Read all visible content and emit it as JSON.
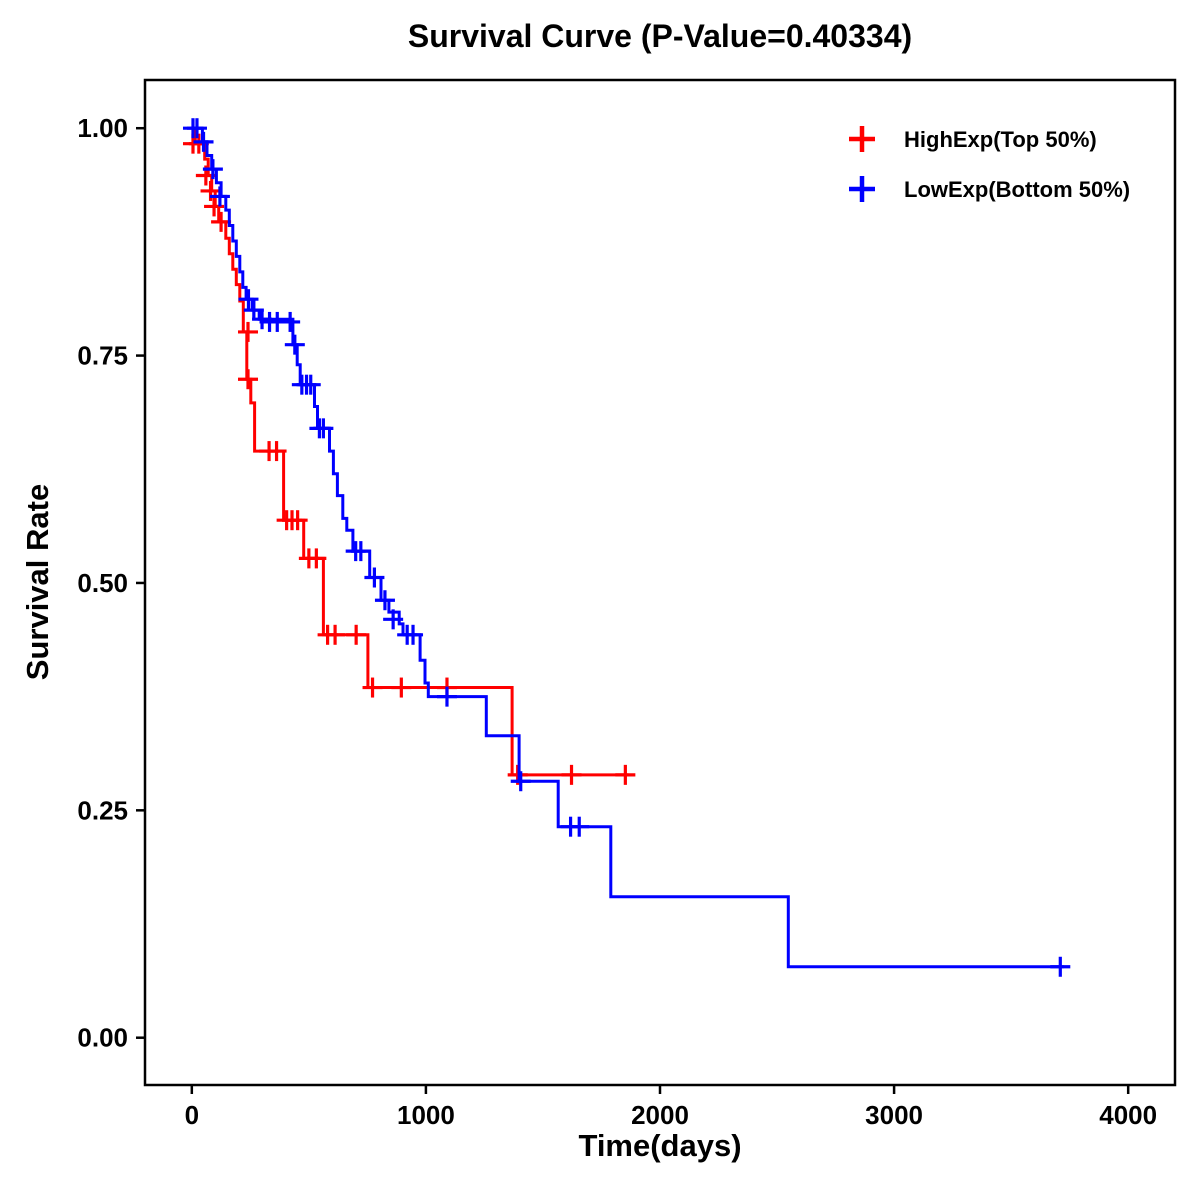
{
  "chart_data": {
    "type": "line",
    "variant": "kaplan-meier-step",
    "title": "Survival Curve (P-Value=0.40334)",
    "xlabel": "Time(days)",
    "ylabel": "Survival Rate",
    "xlim": [
      -200,
      4200
    ],
    "ylim": [
      -0.052,
      1.053
    ],
    "grid": false,
    "legend_position": "top-right",
    "axis_color": "#000000",
    "xticks": [
      {
        "v": 0,
        "label": "0"
      },
      {
        "v": 1000,
        "label": "1000"
      },
      {
        "v": 2000,
        "label": "2000"
      },
      {
        "v": 3000,
        "label": "3000"
      },
      {
        "v": 4000,
        "label": "4000"
      }
    ],
    "yticks": [
      {
        "v": 0.0,
        "label": "0.00"
      },
      {
        "v": 0.25,
        "label": "0.25"
      },
      {
        "v": 0.5,
        "label": "0.50"
      },
      {
        "v": 0.75,
        "label": "0.75"
      },
      {
        "v": 1.0,
        "label": "1.00"
      }
    ],
    "series": [
      {
        "name": "HighExp(Top 50%)",
        "color": "#FF0000",
        "points": [
          [
            0,
            1.0
          ],
          [
            15,
            0.983
          ],
          [
            55,
            0.966
          ],
          [
            70,
            0.948
          ],
          [
            85,
            0.931
          ],
          [
            100,
            0.914
          ],
          [
            115,
            0.897
          ],
          [
            145,
            0.879
          ],
          [
            160,
            0.862
          ],
          [
            175,
            0.845
          ],
          [
            190,
            0.828
          ],
          [
            205,
            0.81
          ],
          [
            220,
            0.776
          ],
          [
            235,
            0.724
          ],
          [
            252,
            0.698
          ],
          [
            268,
            0.645
          ],
          [
            392,
            0.569
          ],
          [
            478,
            0.527
          ],
          [
            562,
            0.443
          ],
          [
            752,
            0.385
          ],
          [
            1368,
            0.289
          ],
          [
            1865,
            0.289
          ]
        ],
        "censors": [
          [
            5,
            0.983
          ],
          [
            30,
            0.983
          ],
          [
            60,
            0.948
          ],
          [
            80,
            0.931
          ],
          [
            95,
            0.914
          ],
          [
            125,
            0.897
          ],
          [
            240,
            0.776
          ],
          [
            240,
            0.724
          ],
          [
            330,
            0.645
          ],
          [
            362,
            0.645
          ],
          [
            405,
            0.569
          ],
          [
            428,
            0.569
          ],
          [
            452,
            0.569
          ],
          [
            500,
            0.527
          ],
          [
            532,
            0.527
          ],
          [
            580,
            0.443
          ],
          [
            612,
            0.443
          ],
          [
            702,
            0.443
          ],
          [
            772,
            0.385
          ],
          [
            895,
            0.385
          ],
          [
            1090,
            0.385
          ],
          [
            1392,
            0.289
          ],
          [
            1622,
            0.289
          ],
          [
            1852,
            0.289
          ]
        ]
      },
      {
        "name": "LowExp(Bottom 50%)",
        "color": "#0000FF",
        "points": [
          [
            0,
            1.0
          ],
          [
            45,
            0.985
          ],
          [
            65,
            0.97
          ],
          [
            85,
            0.955
          ],
          [
            105,
            0.94
          ],
          [
            125,
            0.925
          ],
          [
            145,
            0.91
          ],
          [
            160,
            0.893
          ],
          [
            175,
            0.876
          ],
          [
            190,
            0.859
          ],
          [
            205,
            0.842
          ],
          [
            218,
            0.825
          ],
          [
            232,
            0.812
          ],
          [
            258,
            0.8
          ],
          [
            288,
            0.79
          ],
          [
            432,
            0.762
          ],
          [
            450,
            0.74
          ],
          [
            463,
            0.718
          ],
          [
            524,
            0.694
          ],
          [
            537,
            0.67
          ],
          [
            588,
            0.645
          ],
          [
            605,
            0.62
          ],
          [
            622,
            0.596
          ],
          [
            645,
            0.571
          ],
          [
            662,
            0.558
          ],
          [
            688,
            0.535
          ],
          [
            760,
            0.506
          ],
          [
            808,
            0.481
          ],
          [
            842,
            0.468
          ],
          [
            886,
            0.455
          ],
          [
            902,
            0.443
          ],
          [
            975,
            0.415
          ],
          [
            996,
            0.39
          ],
          [
            1010,
            0.375
          ],
          [
            1258,
            0.332
          ],
          [
            1398,
            0.282
          ],
          [
            1565,
            0.232
          ],
          [
            1790,
            0.155
          ],
          [
            2548,
            0.078
          ],
          [
            3725,
            0.078
          ]
        ],
        "censors": [
          [
            5,
            1.0
          ],
          [
            22,
            1.0
          ],
          [
            50,
            0.985
          ],
          [
            90,
            0.955
          ],
          [
            120,
            0.925
          ],
          [
            242,
            0.812
          ],
          [
            265,
            0.8
          ],
          [
            300,
            0.79
          ],
          [
            332,
            0.787
          ],
          [
            365,
            0.787
          ],
          [
            420,
            0.787
          ],
          [
            440,
            0.762
          ],
          [
            470,
            0.718
          ],
          [
            490,
            0.718
          ],
          [
            508,
            0.718
          ],
          [
            545,
            0.67
          ],
          [
            562,
            0.67
          ],
          [
            700,
            0.535
          ],
          [
            722,
            0.535
          ],
          [
            780,
            0.506
          ],
          [
            825,
            0.481
          ],
          [
            860,
            0.46
          ],
          [
            920,
            0.443
          ],
          [
            945,
            0.443
          ],
          [
            1090,
            0.375
          ],
          [
            1405,
            0.282
          ],
          [
            1618,
            0.232
          ],
          [
            1655,
            0.232
          ],
          [
            3710,
            0.078
          ]
        ]
      }
    ]
  }
}
